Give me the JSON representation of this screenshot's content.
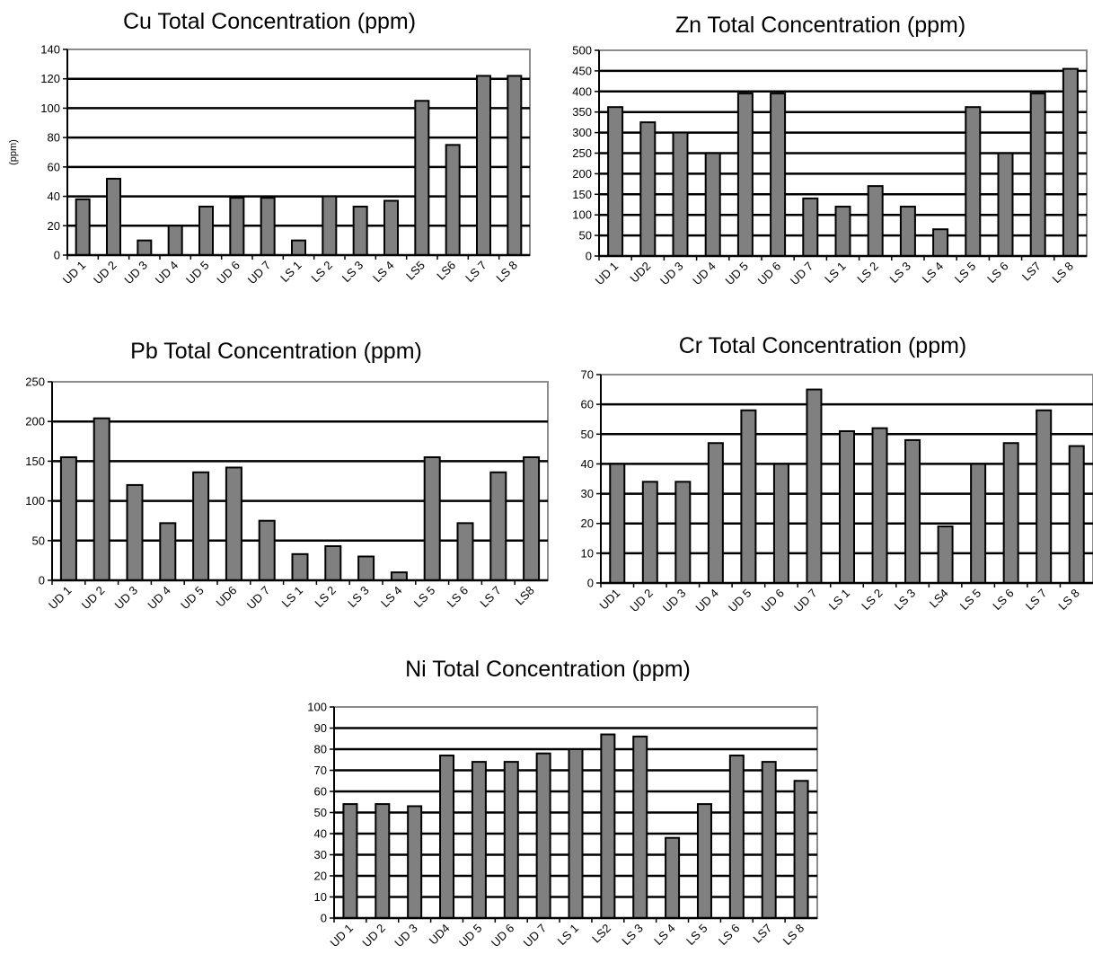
{
  "chart_data": [
    {
      "id": "cu",
      "type": "bar",
      "title": "Cu Total Concentration (ppm)",
      "ylabel": "(ppm)",
      "xlabel": "",
      "ylim": [
        0,
        140
      ],
      "yticks": [
        0,
        20,
        40,
        60,
        80,
        100,
        120,
        140
      ],
      "grid": true,
      "categories": [
        "UD 1",
        "UD 2",
        "UD 3",
        "UD 4",
        "UD 5",
        "UD 6",
        "UD 7",
        "LS 1",
        "LS 2",
        "LS 3",
        "LS 4",
        "LS5",
        "LS6",
        "LS 7",
        "LS 8"
      ],
      "values": [
        38,
        52,
        10,
        20,
        33,
        39,
        39,
        10,
        40,
        33,
        37,
        105,
        75,
        122,
        122
      ]
    },
    {
      "id": "zn",
      "type": "bar",
      "title": "Zn Total Concentration (ppm)",
      "ylabel": "",
      "xlabel": "",
      "ylim": [
        0,
        500
      ],
      "yticks": [
        0,
        50,
        100,
        150,
        200,
        250,
        300,
        350,
        400,
        450,
        500
      ],
      "grid": true,
      "categories": [
        "UD 1",
        "UD2",
        "UD 3",
        "UD 4",
        "UD 5",
        "UD 6",
        "UD 7",
        "LS 1",
        "LS 2",
        "LS 3",
        "LS 4",
        "LS 5",
        "LS 6",
        "LS7",
        "LS 8"
      ],
      "values": [
        362,
        325,
        300,
        250,
        395,
        395,
        140,
        120,
        170,
        120,
        65,
        362,
        250,
        395,
        455
      ]
    },
    {
      "id": "pb",
      "type": "bar",
      "title": "Pb Total Concentration (ppm)",
      "ylabel": "",
      "xlabel": "",
      "ylim": [
        0,
        250
      ],
      "yticks": [
        0,
        50,
        100,
        150,
        200,
        250
      ],
      "grid": true,
      "categories": [
        "UD 1",
        "UD 2",
        "UD 3",
        "UD 4",
        "UD 5",
        "UD6",
        "UD 7",
        "LS 1",
        "LS 2",
        "LS 3",
        "LS 4",
        "LS 5",
        "LS 6",
        "LS 7",
        "LS8"
      ],
      "values": [
        155,
        204,
        120,
        72,
        136,
        142,
        75,
        33,
        43,
        30,
        10,
        155,
        72,
        136,
        155
      ]
    },
    {
      "id": "cr",
      "type": "bar",
      "title": "Cr Total Concentration (ppm)",
      "ylabel": "",
      "xlabel": "",
      "ylim": [
        0,
        70
      ],
      "yticks": [
        0,
        10,
        20,
        30,
        40,
        50,
        60,
        70
      ],
      "grid": true,
      "categories": [
        "UD1",
        "UD 2",
        "UD 3",
        "UD 4",
        "UD 5",
        "UD 6",
        "UD 7",
        "LS 1",
        "LS 2",
        "LS 3",
        "LS4",
        "LS 5",
        "LS 6",
        "LS 7",
        "LS 8"
      ],
      "values": [
        40,
        34,
        34,
        47,
        58,
        40,
        65,
        51,
        52,
        48,
        19,
        40,
        47,
        58,
        46
      ]
    },
    {
      "id": "ni",
      "type": "bar",
      "title": "Ni Total Concentration (ppm)",
      "ylabel": "",
      "xlabel": "",
      "ylim": [
        0,
        100
      ],
      "yticks": [
        0,
        10,
        20,
        30,
        40,
        50,
        60,
        70,
        80,
        90,
        100
      ],
      "grid": true,
      "categories": [
        "UD 1",
        "UD 2",
        "UD 3",
        "UD4",
        "UD 5",
        "UD 6",
        "UD 7",
        "LS 1",
        "LS2",
        "LS 3",
        "LS 4",
        "LS 5",
        "LS 6",
        "LS7",
        "LS 8"
      ],
      "values": [
        54,
        54,
        53,
        77,
        74,
        74,
        78,
        80,
        87,
        86,
        38,
        54,
        77,
        74,
        65
      ]
    }
  ]
}
